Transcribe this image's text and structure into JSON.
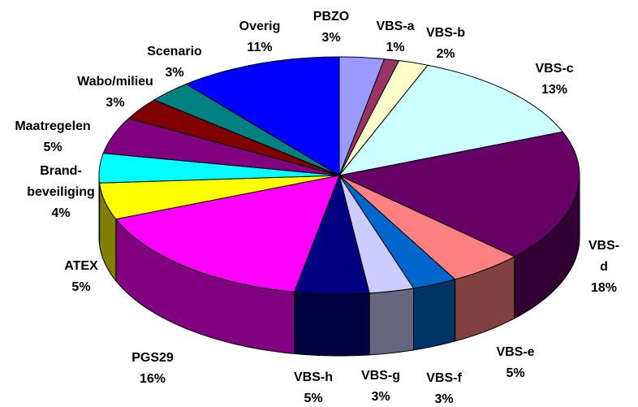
{
  "chart_data": {
    "type": "pie3d",
    "categories": [
      "PBZO",
      "VBS-a",
      "VBS-b",
      "VBS-c",
      "VBS-d",
      "VBS-e",
      "VBS-f",
      "VBS-g",
      "VBS-h",
      "PGS29",
      "ATEX",
      "Brand-\nbeveiliging",
      "Maatregelen",
      "Wabo/milieu",
      "Scenario",
      "Overig"
    ],
    "values": [
      3,
      1,
      2,
      13,
      18,
      5,
      3,
      3,
      5,
      16,
      5,
      4,
      5,
      3,
      3,
      11
    ],
    "value_labels": [
      "3%",
      "1%",
      "2%",
      "13%",
      "18%",
      "5%",
      "3%",
      "3%",
      "5%",
      "16%",
      "5%",
      "4%",
      "5%",
      "3%",
      "3%",
      "11%"
    ],
    "colors": [
      "#9999ff",
      "#993366",
      "#ffffcc",
      "#ccffff",
      "#660066",
      "#ff8080",
      "#0066cc",
      "#ccccff",
      "#000080",
      "#ff00ff",
      "#ffff00",
      "#00ffff",
      "#800080",
      "#800000",
      "#008080",
      "#0000ff"
    ]
  }
}
